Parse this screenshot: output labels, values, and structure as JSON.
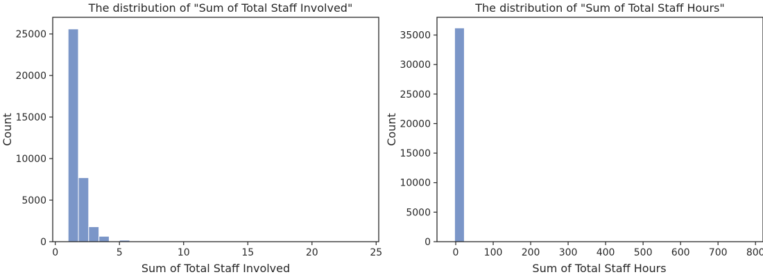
{
  "chart_data": [
    {
      "type": "bar",
      "title": "The distribution of \"Sum of Total Staff Involved\"",
      "xlabel": "Sum of Total Staff Involved",
      "ylabel": "Count",
      "xlim": [
        -0.2,
        25.2
      ],
      "ylim": [
        0,
        27000
      ],
      "xticks": [
        0,
        5,
        10,
        15,
        20,
        25
      ],
      "yticks": [
        0,
        5000,
        10000,
        15000,
        20000,
        25000
      ],
      "grid": false,
      "bar_color": "#7b96c8",
      "bins": [
        {
          "x0": 1.0,
          "x1": 1.8,
          "count": 25600
        },
        {
          "x0": 1.8,
          "x1": 2.6,
          "count": 7700
        },
        {
          "x0": 2.6,
          "x1": 3.4,
          "count": 1800
        },
        {
          "x0": 3.4,
          "x1": 4.2,
          "count": 650
        },
        {
          "x0": 4.2,
          "x1": 5.0,
          "count": 20
        },
        {
          "x0": 5.0,
          "x1": 5.8,
          "count": 180
        },
        {
          "x0": 5.8,
          "x1": 6.6,
          "count": 50
        },
        {
          "x0": 6.6,
          "x1": 7.4,
          "count": 20
        },
        {
          "x0": 7.4,
          "x1": 8.2,
          "count": 10
        },
        {
          "x0": 8.2,
          "x1": 9.0,
          "count": 5
        },
        {
          "x0": 9.0,
          "x1": 9.8,
          "count": 5
        },
        {
          "x0": 9.8,
          "x1": 10.6,
          "count": 3
        },
        {
          "x0": 10.6,
          "x1": 11.4,
          "count": 2
        },
        {
          "x0": 11.4,
          "x1": 12.2,
          "count": 1
        }
      ]
    },
    {
      "type": "bar",
      "title": "The distribution of \"Sum of Total Staff Hours\"",
      "xlabel": "Sum of Total Staff Hours",
      "ylabel": "Count",
      "xlim": [
        -50,
        820
      ],
      "ylim": [
        0,
        38000
      ],
      "xticks": [
        0,
        100,
        200,
        300,
        400,
        500,
        600,
        700,
        800
      ],
      "yticks": [
        0,
        5000,
        10000,
        15000,
        20000,
        25000,
        30000,
        35000
      ],
      "grid": false,
      "bar_color": "#7b96c8",
      "bins": [
        {
          "x0": -3,
          "x1": 23,
          "count": 36200
        },
        {
          "x0": 23,
          "x1": 49,
          "count": 30
        },
        {
          "x0": 49,
          "x1": 75,
          "count": 5
        }
      ]
    }
  ]
}
